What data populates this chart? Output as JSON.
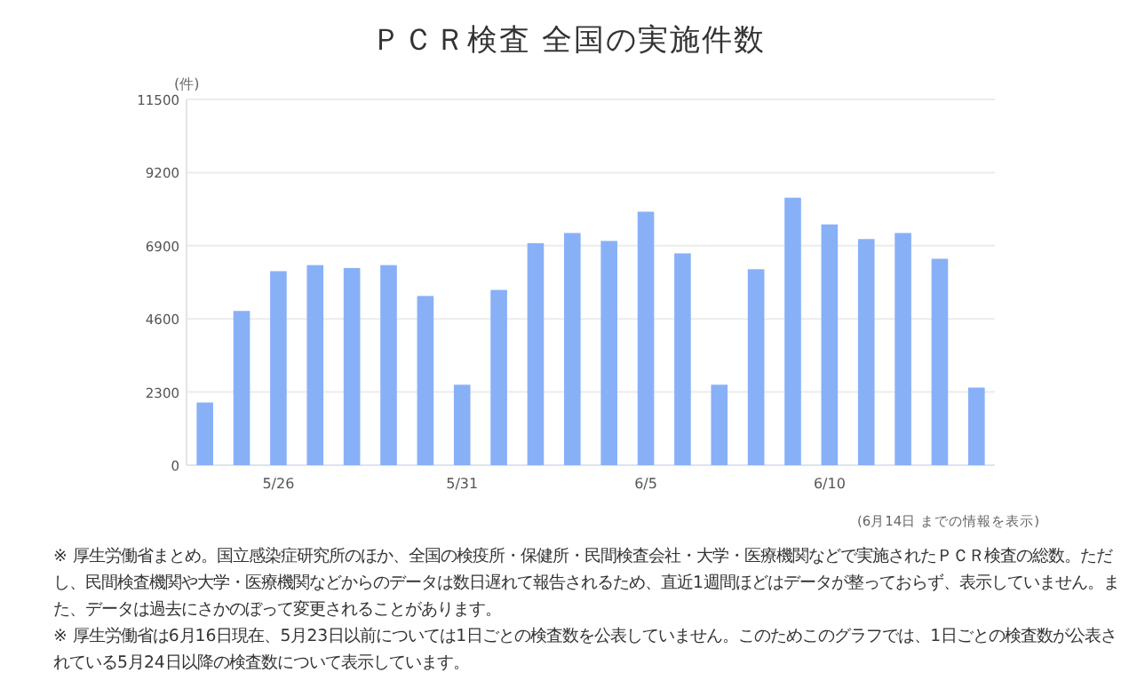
{
  "chart_data": {
    "type": "bar",
    "title": "ＰＣＲ検査 全国の実施件数",
    "ylabel": "(件)",
    "categories": [
      null,
      null,
      "5/26",
      null,
      null,
      null,
      null,
      "5/31",
      null,
      null,
      null,
      null,
      "6/5",
      null,
      null,
      null,
      null,
      "6/10",
      null,
      null,
      null,
      null
    ],
    "values": [
      1970,
      4850,
      6100,
      6290,
      6200,
      6290,
      5320,
      2530,
      5510,
      6980,
      7300,
      7050,
      7970,
      6660,
      2530,
      6160,
      8410,
      7570,
      7110,
      7300,
      6490,
      2440
    ],
    "color": "#88b0f7",
    "ylim": [
      0,
      11500
    ],
    "yticks": [
      0,
      2300,
      4600,
      6900,
      9200,
      11500
    ],
    "grid": "y",
    "annotations": [
      "(6月14日 までの情報を表示)",
      "※ 厚生労働省まとめ。国立感染症研究所のほか、全国の検疫所・保健所・民間検査会社・大学・医療機関などで実施されたＰＣＲ検査の総数。ただし、民間検査機関や大学・医療機関などからのデータは数日遅れて報告されるため、直近1週間ほどはデータが整っておらず、表示していません。また、データは過去にさかのぼって変更されることがあります。",
      "※ 厚生労働省は6月16日現在、5月23日以前については1日ごとの検査数を公表していません。このためこのグラフでは、1日ごとの検査数が公表されている5月24日以降の検査数について表示しています。"
    ]
  }
}
